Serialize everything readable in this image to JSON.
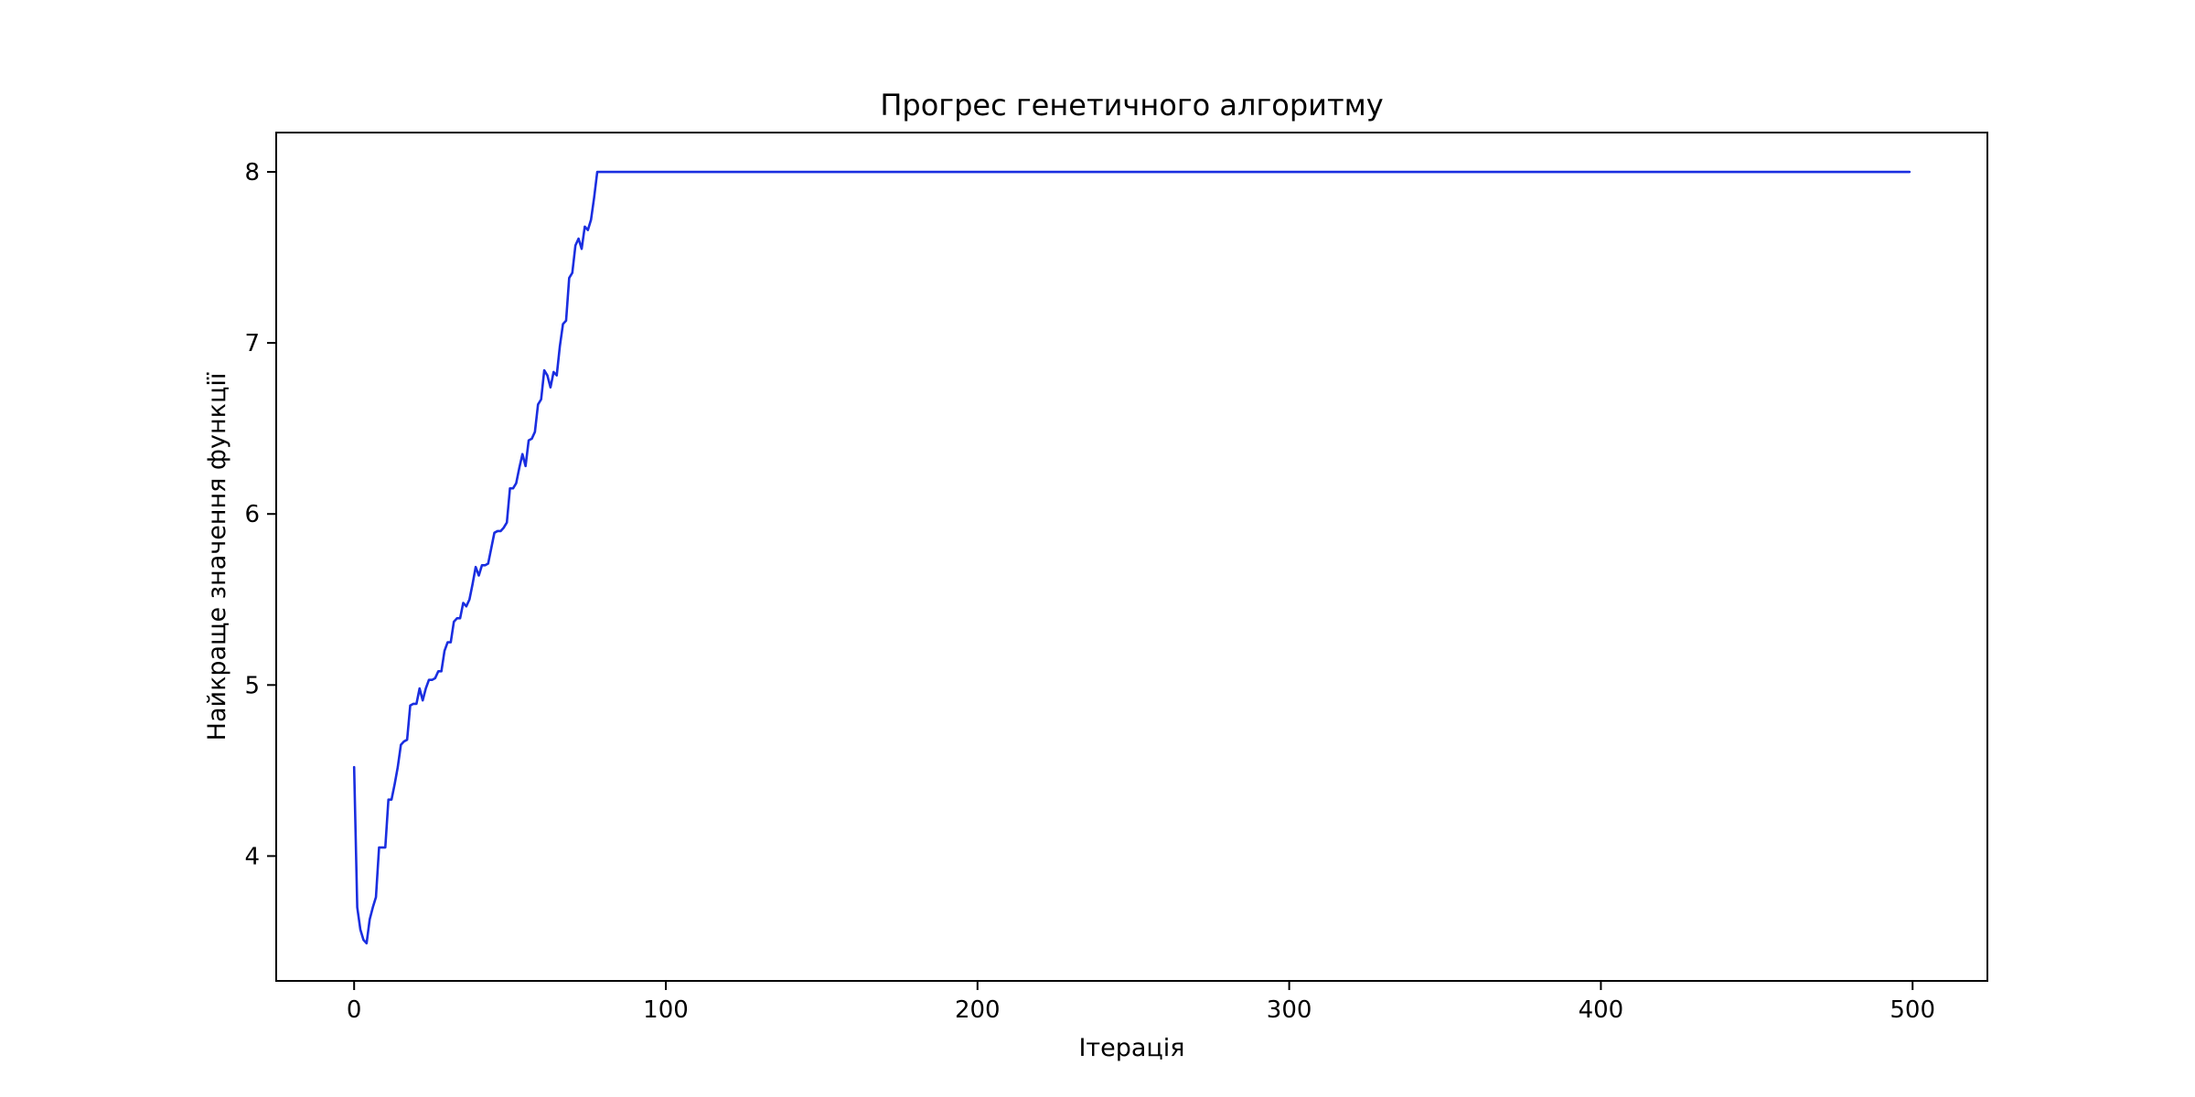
{
  "chart_data": {
    "type": "line",
    "title": "Прогрес генетичного алгоритму",
    "xlabel": "Ітерація",
    "ylabel": "Найкраще значення функції",
    "xlim": [
      -25,
      524
    ],
    "ylim": [
      3.27,
      8.23
    ],
    "xticks": [
      0,
      100,
      200,
      300,
      400,
      500
    ],
    "xtick_labels": [
      "0",
      "100",
      "200",
      "300",
      "400",
      "500"
    ],
    "yticks": [
      4,
      5,
      6,
      7,
      8
    ],
    "ytick_labels": [
      "4",
      "5",
      "6",
      "7",
      "8"
    ],
    "grid": false,
    "legend": "none",
    "line_color": "#1a2ee0",
    "series": [
      {
        "x": [
          0,
          1,
          2,
          3,
          4,
          5,
          6,
          7,
          8,
          9,
          10,
          11,
          12,
          13,
          14,
          15,
          16,
          17,
          18,
          19,
          20,
          21,
          22,
          23,
          24,
          25,
          26,
          27,
          28,
          29,
          30,
          31,
          32,
          33,
          34,
          35,
          36,
          37,
          38,
          39,
          40,
          41,
          42,
          43,
          44,
          45,
          46,
          47,
          48,
          49,
          50,
          51,
          52,
          53,
          54,
          55,
          56,
          57,
          58,
          59,
          60,
          61,
          62,
          63,
          64,
          65,
          66,
          67,
          68,
          69,
          70,
          71,
          72,
          73,
          74,
          75,
          76,
          77,
          78,
          79,
          499
        ],
        "values": [
          4.52,
          3.7,
          3.57,
          3.51,
          3.49,
          3.63,
          3.7,
          3.76,
          4.05,
          4.05,
          4.05,
          4.33,
          4.33,
          4.42,
          4.52,
          4.65,
          4.67,
          4.68,
          4.88,
          4.89,
          4.89,
          4.98,
          4.91,
          4.98,
          5.03,
          5.03,
          5.04,
          5.08,
          5.08,
          5.2,
          5.25,
          5.25,
          5.37,
          5.39,
          5.39,
          5.48,
          5.46,
          5.5,
          5.59,
          5.69,
          5.64,
          5.7,
          5.7,
          5.71,
          5.8,
          5.89,
          5.9,
          5.9,
          5.92,
          5.95,
          6.15,
          6.15,
          6.18,
          6.27,
          6.35,
          6.28,
          6.43,
          6.44,
          6.48,
          6.64,
          6.67,
          6.84,
          6.81,
          6.74,
          6.83,
          6.81,
          6.98,
          7.11,
          7.13,
          7.38,
          7.41,
          7.57,
          7.61,
          7.55,
          7.68,
          7.66,
          7.72,
          7.85,
          8.0,
          8.0,
          8.0
        ]
      }
    ]
  }
}
